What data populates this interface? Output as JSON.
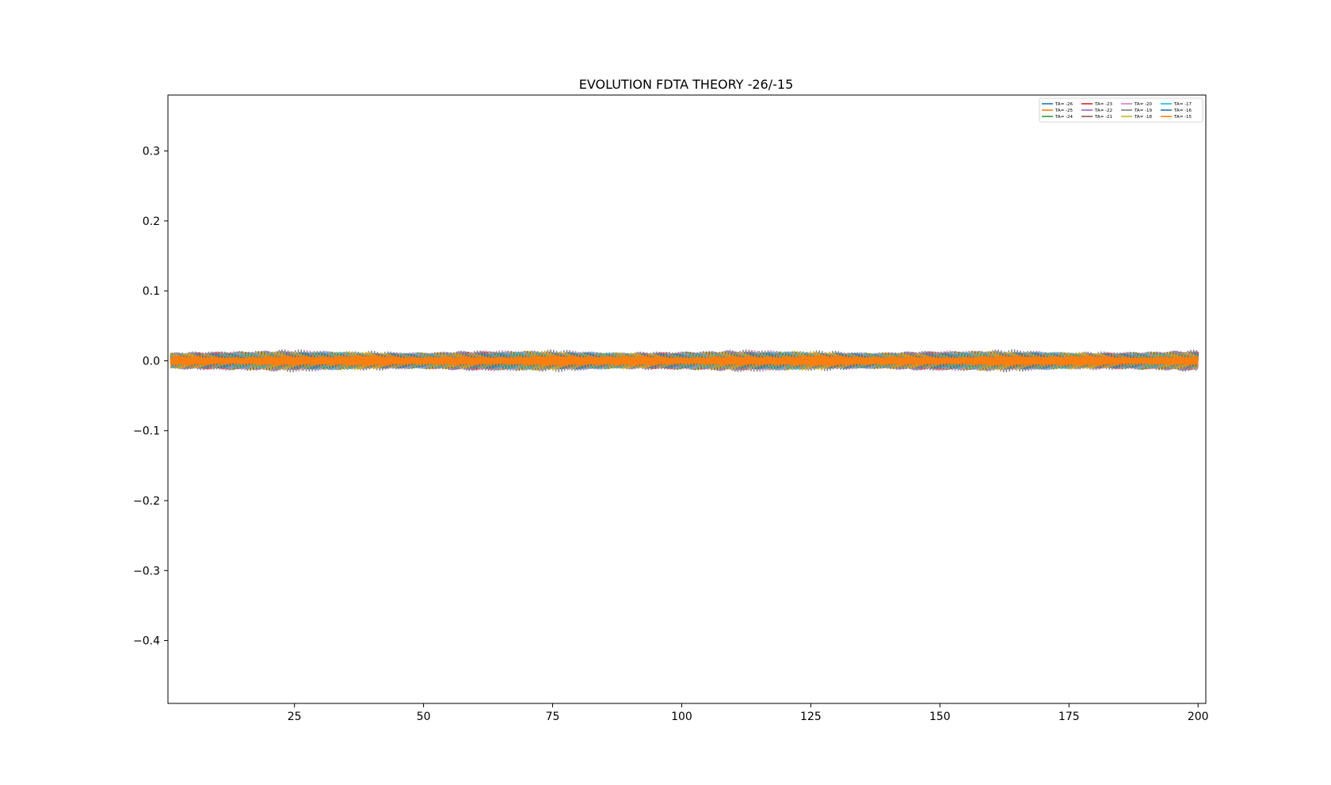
{
  "chart_data": {
    "type": "line",
    "title": "EVOLUTION FDTA THEORY -26/-15",
    "xlabel": "",
    "ylabel": "",
    "xlim": [
      0.5,
      201.5
    ],
    "ylim": [
      -0.49,
      0.38
    ],
    "x_ticks": [
      25,
      50,
      75,
      100,
      125,
      150,
      175,
      200
    ],
    "y_ticks": [
      -0.4,
      -0.3,
      -0.2,
      -0.1,
      0.0,
      0.1,
      0.2,
      0.3
    ],
    "x_tick_labels": [
      "25",
      "50",
      "75",
      "100",
      "125",
      "150",
      "175",
      "200"
    ],
    "y_tick_labels": [
      "−0.4",
      "−0.3",
      "−0.2",
      "−0.1",
      "0.0",
      "0.1",
      "0.2",
      "0.3"
    ],
    "grid": false,
    "legend": {
      "placement": "upper-right",
      "columns": 4,
      "entries": [
        "TA= -26",
        "TA= -25",
        "TA= -24",
        "TA= -23",
        "TA= -22",
        "TA= -21",
        "TA= -20",
        "TA= -19",
        "TA= -18",
        "TA= -17",
        "TA= -16",
        "TA= -15"
      ]
    },
    "x_range": [
      1,
      200
    ],
    "series": [
      {
        "name": "TA= -26",
        "color": "#1f77b4",
        "amplitude": 0.012
      },
      {
        "name": "TA= -25",
        "color": "#ff7f0e",
        "amplitude": 0.012
      },
      {
        "name": "TA= -24",
        "color": "#2ca02c",
        "amplitude": 0.013
      },
      {
        "name": "TA= -23",
        "color": "#d62728",
        "amplitude": 0.013
      },
      {
        "name": "TA= -22",
        "color": "#9467bd",
        "amplitude": 0.014
      },
      {
        "name": "TA= -21",
        "color": "#8c564b",
        "amplitude": 0.014
      },
      {
        "name": "TA= -20",
        "color": "#e377c2",
        "amplitude": 0.015
      },
      {
        "name": "TA= -19",
        "color": "#7f7f7f",
        "amplitude": 0.016
      },
      {
        "name": "TA= -18",
        "color": "#bcbd22",
        "amplitude": 0.014
      },
      {
        "name": "TA= -17",
        "color": "#17becf",
        "amplitude": 0.013
      },
      {
        "name": "TA= -16",
        "color": "#1f77b4",
        "amplitude": 0.012
      },
      {
        "name": "TA= -15",
        "color": "#ff7f0e",
        "amplitude": 0.011
      }
    ]
  }
}
